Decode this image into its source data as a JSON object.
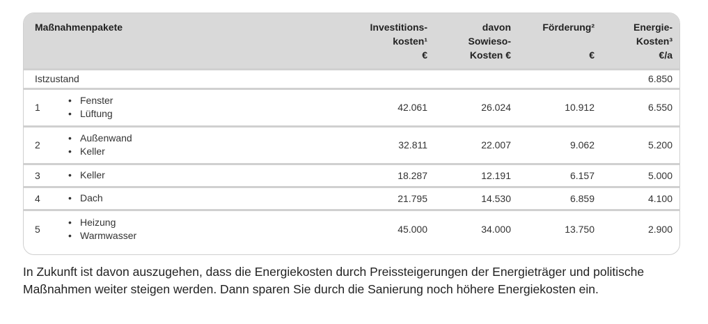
{
  "table": {
    "headers": {
      "name": "Maßnahmenpakete",
      "invest": [
        "Investitions-",
        "kosten¹",
        "€"
      ],
      "sowieso": [
        "davon",
        "Sowieso-",
        "Kosten €"
      ],
      "foerderung": [
        "Förderung²",
        "",
        "€"
      ],
      "energie": [
        "Energie-",
        "Kosten³",
        "€/a"
      ]
    },
    "istzustand": {
      "label": "Istzustand",
      "energie": "6.850"
    },
    "rows": [
      {
        "no": "1",
        "items": [
          "Fenster",
          "Lüftung"
        ],
        "invest": "42.061",
        "sowieso": "26.024",
        "foerderung": "10.912",
        "energie": "6.550"
      },
      {
        "no": "2",
        "items": [
          "Außenwand",
          "Keller"
        ],
        "invest": "32.811",
        "sowieso": "22.007",
        "foerderung": "9.062",
        "energie": "5.200"
      },
      {
        "no": "3",
        "items": [
          "Keller"
        ],
        "invest": "18.287",
        "sowieso": "12.191",
        "foerderung": "6.157",
        "energie": "5.000"
      },
      {
        "no": "4",
        "items": [
          "Dach"
        ],
        "invest": "21.795",
        "sowieso": "14.530",
        "foerderung": "6.859",
        "energie": "4.100"
      },
      {
        "no": "5",
        "items": [
          "Heizung",
          "Warmwasser"
        ],
        "invest": "45.000",
        "sowieso": "34.000",
        "foerderung": "13.750",
        "energie": "2.900"
      }
    ]
  },
  "note": "In Zukunft ist davon auszugehen, dass die Energiekosten durch Preissteigerungen der Energieträger und politische Maßnahmen weiter steigen werden. Dann sparen Sie durch die Sanierung noch höhere Energiekosten ein."
}
